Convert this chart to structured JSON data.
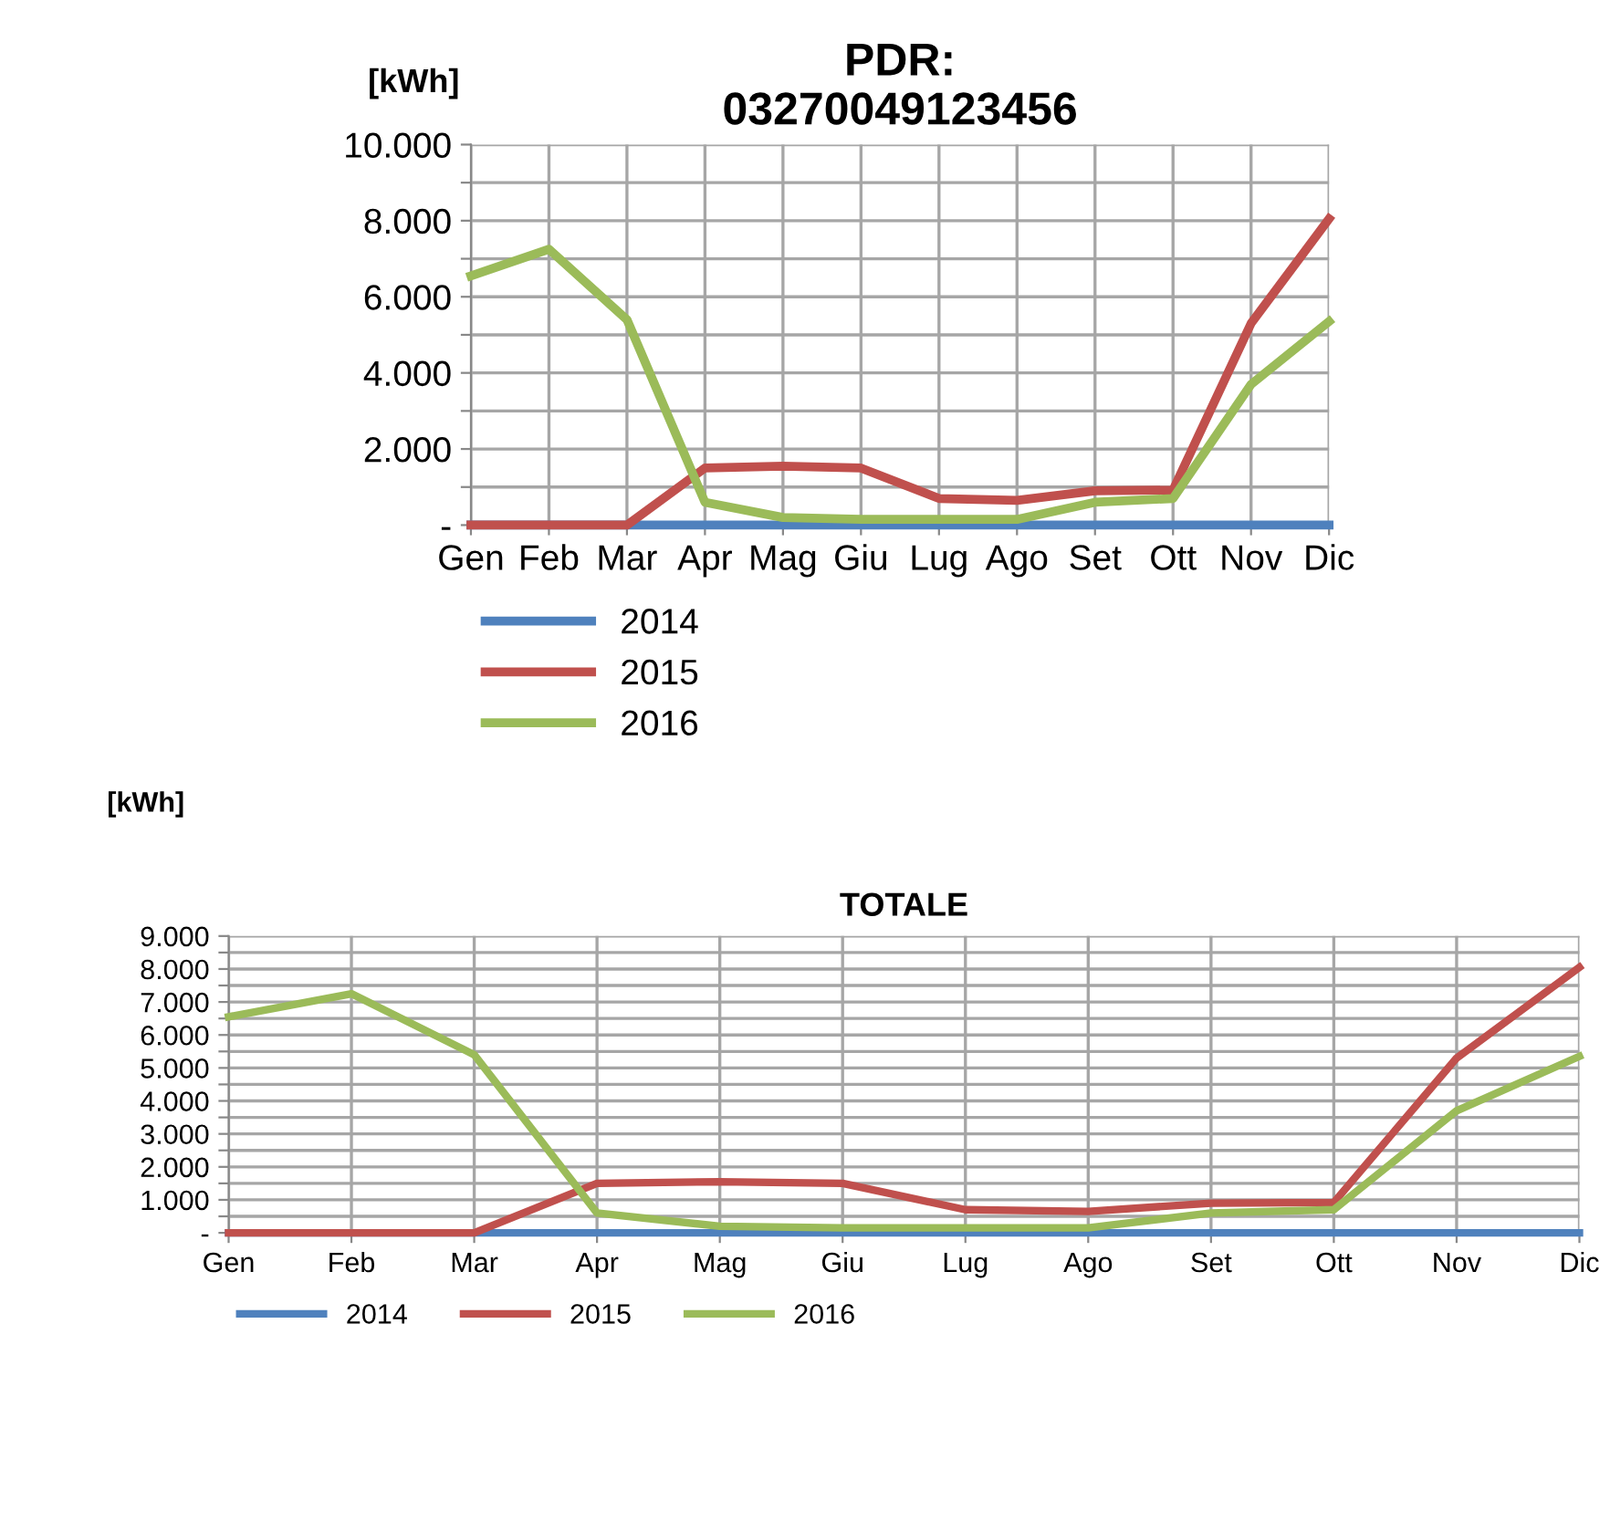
{
  "chart_data": [
    {
      "type": "line",
      "title": "PDR:\n03270049123456",
      "ylabel": "[kWh]",
      "categories": [
        "Gen",
        "Feb",
        "Mar",
        "Apr",
        "Mag",
        "Giu",
        "Lug",
        "Ago",
        "Set",
        "Ott",
        "Nov",
        "Dic"
      ],
      "ylim": [
        0,
        10000
      ],
      "yticks": [
        {
          "value": 0,
          "label": "-"
        },
        {
          "value": 1000,
          "label": null
        },
        {
          "value": 2000,
          "label": "2.000"
        },
        {
          "value": 3000,
          "label": null
        },
        {
          "value": 4000,
          "label": "4.000"
        },
        {
          "value": 5000,
          "label": null
        },
        {
          "value": 6000,
          "label": "6.000"
        },
        {
          "value": 7000,
          "label": null
        },
        {
          "value": 8000,
          "label": "8.000"
        },
        {
          "value": 9000,
          "label": null
        },
        {
          "value": 10000,
          "label": "10.000"
        }
      ],
      "grid": true,
      "legend": "bottom left",
      "marker": "none",
      "line_style": "solid",
      "series": [
        {
          "name": "2014",
          "color": "#4f81bd",
          "values": [
            0,
            0,
            0,
            0,
            0,
            0,
            0,
            0,
            0,
            0,
            0,
            0
          ]
        },
        {
          "name": "2015",
          "color": "#c0504d",
          "values": [
            0,
            0,
            0,
            1500,
            1550,
            1500,
            700,
            650,
            900,
            920,
            5300,
            8050
          ]
        },
        {
          "name": "2016",
          "color": "#9bbb59",
          "values": [
            6550,
            7250,
            5400,
            600,
            200,
            150,
            150,
            150,
            600,
            700,
            3700,
            5350
          ]
        }
      ]
    },
    {
      "type": "line",
      "title": "TOTALE",
      "ylabel": "[kWh]",
      "categories": [
        "Gen",
        "Feb",
        "Mar",
        "Apr",
        "Mag",
        "Giu",
        "Lug",
        "Ago",
        "Set",
        "Ott",
        "Nov",
        "Dic"
      ],
      "ylim": [
        0,
        9000
      ],
      "yticks": [
        {
          "value": 0,
          "label": "-"
        },
        {
          "value": 500,
          "label": null
        },
        {
          "value": 1000,
          "label": "1.000"
        },
        {
          "value": 1500,
          "label": null
        },
        {
          "value": 2000,
          "label": "2.000"
        },
        {
          "value": 2500,
          "label": null
        },
        {
          "value": 3000,
          "label": "3.000"
        },
        {
          "value": 3500,
          "label": null
        },
        {
          "value": 4000,
          "label": "4.000"
        },
        {
          "value": 4500,
          "label": null
        },
        {
          "value": 5000,
          "label": "5.000"
        },
        {
          "value": 5500,
          "label": null
        },
        {
          "value": 6000,
          "label": "6.000"
        },
        {
          "value": 6500,
          "label": null
        },
        {
          "value": 7000,
          "label": "7.000"
        },
        {
          "value": 7500,
          "label": null
        },
        {
          "value": 8000,
          "label": "8.000"
        },
        {
          "value": 8500,
          "label": null
        },
        {
          "value": 9000,
          "label": "9.000"
        }
      ],
      "grid": true,
      "legend": "bottom left",
      "marker": "none",
      "line_style": "solid",
      "series": [
        {
          "name": "2014",
          "color": "#4f81bd",
          "values": [
            0,
            0,
            0,
            0,
            0,
            0,
            0,
            0,
            0,
            0,
            0,
            0
          ]
        },
        {
          "name": "2015",
          "color": "#c0504d",
          "values": [
            0,
            0,
            0,
            1500,
            1550,
            1500,
            700,
            650,
            900,
            920,
            5300,
            8050
          ]
        },
        {
          "name": "2016",
          "color": "#9bbb59",
          "values": [
            6550,
            7250,
            5400,
            600,
            200,
            150,
            150,
            150,
            600,
            700,
            3700,
            5350
          ]
        }
      ]
    }
  ]
}
